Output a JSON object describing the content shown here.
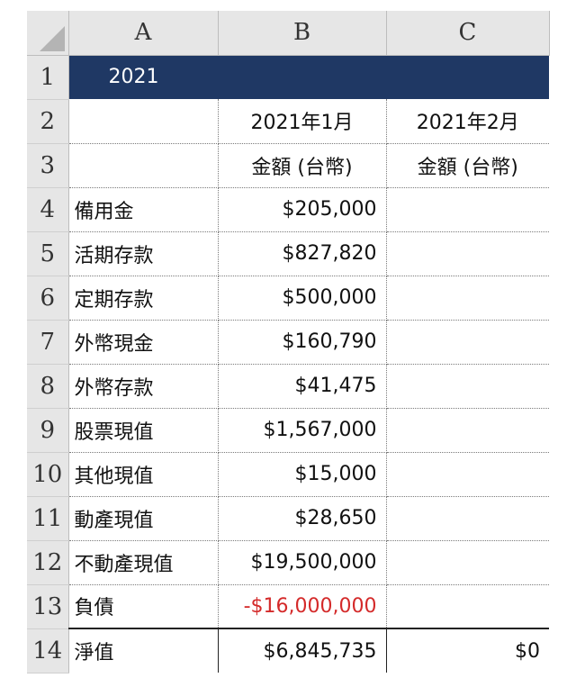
{
  "columns": [
    "A",
    "B",
    "C"
  ],
  "rows": [
    {
      "num": "1",
      "a": "2021",
      "b": "",
      "c": ""
    },
    {
      "num": "2",
      "a": "",
      "b": "2021年1月",
      "c": "2021年2月"
    },
    {
      "num": "3",
      "a": "",
      "b": "金額 (台幣)",
      "c": "金額 (台幣)"
    },
    {
      "num": "4",
      "a": "備用金",
      "b": "$205,000",
      "c": ""
    },
    {
      "num": "5",
      "a": "活期存款",
      "b": "$827,820",
      "c": ""
    },
    {
      "num": "6",
      "a": "定期存款",
      "b": "$500,000",
      "c": ""
    },
    {
      "num": "7",
      "a": "外幣現金",
      "b": "$160,790",
      "c": ""
    },
    {
      "num": "8",
      "a": "外幣存款",
      "b": "$41,475",
      "c": ""
    },
    {
      "num": "9",
      "a": "股票現值",
      "b": "$1,567,000",
      "c": ""
    },
    {
      "num": "10",
      "a": "其他現值",
      "b": "$15,000",
      "c": ""
    },
    {
      "num": "11",
      "a": "動產現值",
      "b": "$28,650",
      "c": ""
    },
    {
      "num": "12",
      "a": "不動產現值",
      "b": "$19,500,000",
      "c": ""
    },
    {
      "num": "13",
      "a": "負債",
      "b": "-$16,000,000",
      "c": ""
    },
    {
      "num": "14",
      "a": "淨值",
      "b": "$6,845,735",
      "c": "$0"
    }
  ],
  "colors": {
    "header_fill": "#1f3864",
    "negative": "#d42a2a",
    "grid_header": "#e6e6e6"
  }
}
